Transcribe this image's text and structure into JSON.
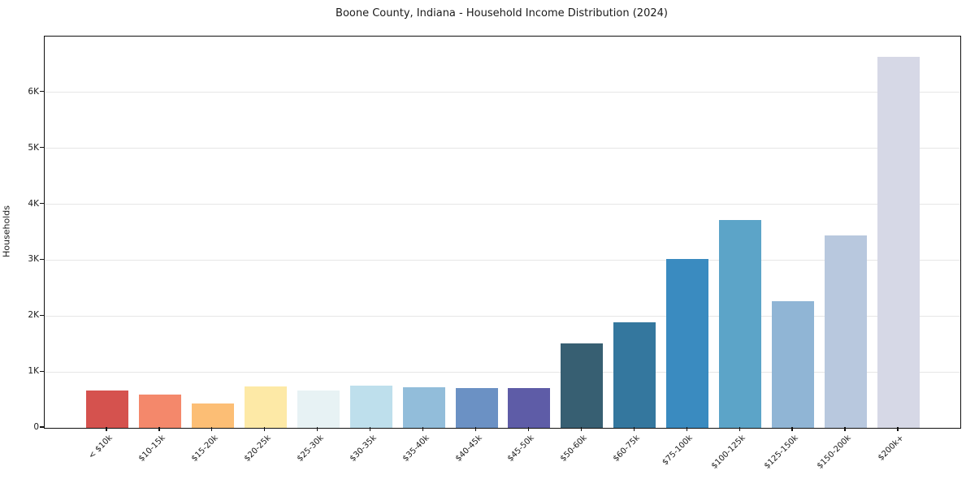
{
  "title": "Boone County, Indiana - Household Income Distribution (2024)",
  "chart_data": {
    "type": "bar",
    "title": "Boone County, Indiana - Household Income Distribution (2024)",
    "xlabel": "",
    "ylabel": "Households",
    "categories": [
      "< $10k",
      "$10-15k",
      "$15-20k",
      "$20-25k",
      "$25-30k",
      "$30-35k",
      "$35-40k",
      "$40-45k",
      "$45-50k",
      "$50-60k",
      "$60-75k",
      "$75-100k",
      "$100-125k",
      "$125-150k",
      "$150-200k",
      "$200k+"
    ],
    "values": [
      670,
      590,
      440,
      745,
      670,
      760,
      730,
      715,
      710,
      1510,
      1890,
      3020,
      3715,
      2260,
      3435,
      6640
    ],
    "bar_colors": [
      "#d5524e",
      "#f4886b",
      "#fcbe75",
      "#fde9a6",
      "#e7f2f4",
      "#bedfec",
      "#92bdda",
      "#6b91c4",
      "#5e5ca7",
      "#375f72",
      "#34779e",
      "#3a8bc0",
      "#5ca4c8",
      "#90b5d5",
      "#b8c8de",
      "#d6d8e6"
    ],
    "ylim": [
      0,
      7000
    ],
    "yticks": {
      "values": [
        0,
        1000,
        2000,
        3000,
        4000,
        5000,
        6000
      ],
      "labels": [
        "0",
        "1K",
        "2K",
        "3K",
        "4K",
        "5K",
        "6K"
      ]
    },
    "grid": "horizontal",
    "legend": "none"
  }
}
